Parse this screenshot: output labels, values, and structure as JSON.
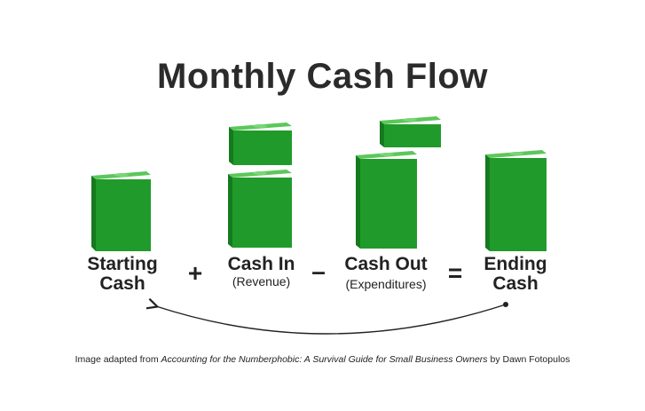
{
  "title": "Monthly Cash Flow",
  "terms": [
    {
      "label_line1": "Starting",
      "label_line2": "Cash",
      "sub": ""
    },
    {
      "label_line1": "Cash In",
      "label_line2": "",
      "sub": "(Revenue)"
    },
    {
      "label_line1": "Cash Out",
      "label_line2": "",
      "sub": "(Expenditures)"
    },
    {
      "label_line1": "Ending",
      "label_line2": "Cash",
      "sub": ""
    }
  ],
  "operators": {
    "plus": "+",
    "minus": "–",
    "equals": "="
  },
  "caption": {
    "prefix": "Image adapted from ",
    "book": "Accounting for the Numberphobic: A Survival Guide for Small Business Owners",
    "suffix": " by Dawn Fotopulos"
  },
  "colors": {
    "money_front": "#1f9a2a",
    "money_top": "#52c24f",
    "money_side": "#167a1f",
    "arrow": "#222222"
  }
}
